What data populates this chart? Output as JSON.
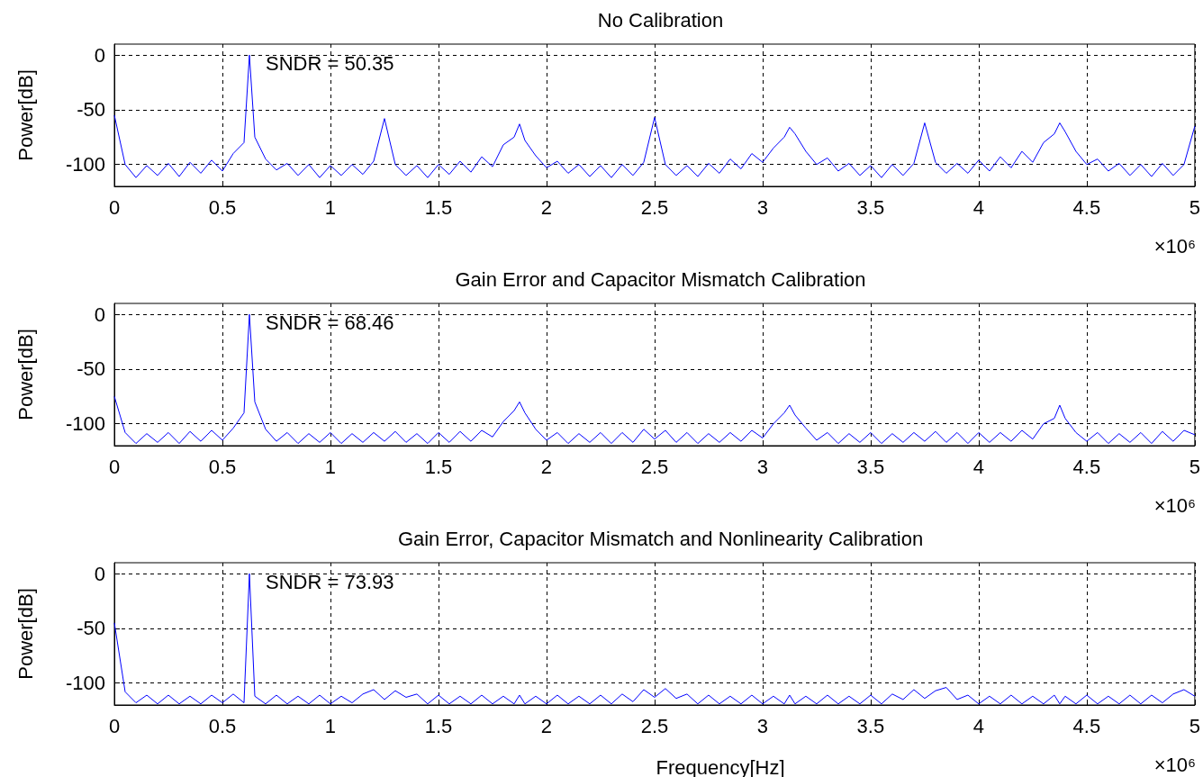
{
  "chart_data": [
    {
      "type": "line",
      "title": "No Calibration",
      "ylabel": "Power[dB]",
      "annotations": [
        "SNDR = 50.35",
        "×10⁶"
      ],
      "xlim": [
        0,
        5
      ],
      "xticks": [
        0,
        0.5,
        1,
        1.5,
        2,
        2.5,
        3,
        3.5,
        4,
        4.5,
        5
      ],
      "ylim": [
        -120,
        10
      ],
      "yticks": [
        -100,
        -50,
        0
      ],
      "grid": true,
      "x": [
        0,
        0.05,
        0.1,
        0.15,
        0.2,
        0.25,
        0.3,
        0.35,
        0.4,
        0.45,
        0.5,
        0.55,
        0.6,
        0.625,
        0.65,
        0.7,
        0.75,
        0.8,
        0.85,
        0.9,
        0.95,
        1,
        1.05,
        1.1,
        1.15,
        1.2,
        1.25,
        1.3,
        1.35,
        1.4,
        1.45,
        1.5,
        1.55,
        1.6,
        1.65,
        1.7,
        1.75,
        1.8,
        1.85,
        1.875,
        1.9,
        1.95,
        2,
        2.05,
        2.1,
        2.15,
        2.2,
        2.25,
        2.3,
        2.35,
        2.4,
        2.45,
        2.5,
        2.55,
        2.6,
        2.65,
        2.7,
        2.75,
        2.8,
        2.85,
        2.9,
        2.95,
        3,
        3.05,
        3.1,
        3.125,
        3.15,
        3.2,
        3.25,
        3.3,
        3.35,
        3.4,
        3.45,
        3.5,
        3.55,
        3.6,
        3.65,
        3.7,
        3.75,
        3.8,
        3.85,
        3.9,
        3.95,
        4,
        4.05,
        4.1,
        4.15,
        4.2,
        4.25,
        4.3,
        4.35,
        4.375,
        4.4,
        4.45,
        4.5,
        4.55,
        4.6,
        4.65,
        4.7,
        4.75,
        4.8,
        4.85,
        4.9,
        4.95,
        5
      ],
      "series": [
        {
          "color": "#0000ff",
          "values": [
            -55,
            -100,
            -112,
            -101,
            -110,
            -99,
            -111,
            -98,
            -108,
            -96,
            -106,
            -90,
            -80,
            0,
            -75,
            -95,
            -105,
            -99,
            -110,
            -100,
            -112,
            -101,
            -110,
            -100,
            -109,
            -97,
            -58,
            -100,
            -110,
            -101,
            -112,
            -100,
            -109,
            -97,
            -107,
            -93,
            -102,
            -82,
            -75,
            -63,
            -78,
            -92,
            -103,
            -97,
            -108,
            -100,
            -111,
            -101,
            -112,
            -100,
            -110,
            -98,
            -57,
            -100,
            -110,
            -101,
            -111,
            -99,
            -108,
            -95,
            -104,
            -90,
            -98,
            -85,
            -75,
            -66,
            -72,
            -88,
            -100,
            -94,
            -106,
            -99,
            -110,
            -101,
            -112,
            -100,
            -110,
            -99,
            -62,
            -98,
            -108,
            -99,
            -108,
            -96,
            -106,
            -93,
            -103,
            -88,
            -98,
            -80,
            -72,
            -62,
            -70,
            -88,
            -100,
            -95,
            -106,
            -99,
            -110,
            -100,
            -111,
            -99,
            -110,
            -100,
            -65
          ]
        }
      ]
    },
    {
      "type": "line",
      "title": "Gain Error and Capacitor Mismatch Calibration",
      "ylabel": "Power[dB]",
      "annotations": [
        "SNDR = 68.46",
        "×10⁶"
      ],
      "xlim": [
        0,
        5
      ],
      "xticks": [
        0,
        0.5,
        1,
        1.5,
        2,
        2.5,
        3,
        3.5,
        4,
        4.5,
        5
      ],
      "ylim": [
        -120,
        10
      ],
      "yticks": [
        -100,
        -50,
        0
      ],
      "grid": true,
      "x": [
        0,
        0.05,
        0.1,
        0.15,
        0.2,
        0.25,
        0.3,
        0.35,
        0.4,
        0.45,
        0.5,
        0.55,
        0.6,
        0.625,
        0.65,
        0.7,
        0.75,
        0.8,
        0.85,
        0.9,
        0.95,
        1,
        1.05,
        1.1,
        1.15,
        1.2,
        1.25,
        1.3,
        1.35,
        1.4,
        1.45,
        1.5,
        1.55,
        1.6,
        1.65,
        1.7,
        1.75,
        1.8,
        1.85,
        1.875,
        1.9,
        1.95,
        2,
        2.05,
        2.1,
        2.15,
        2.2,
        2.25,
        2.3,
        2.35,
        2.4,
        2.45,
        2.5,
        2.55,
        2.6,
        2.65,
        2.7,
        2.75,
        2.8,
        2.85,
        2.9,
        2.95,
        3,
        3.05,
        3.1,
        3.125,
        3.15,
        3.2,
        3.25,
        3.3,
        3.35,
        3.4,
        3.45,
        3.5,
        3.55,
        3.6,
        3.65,
        3.7,
        3.75,
        3.8,
        3.85,
        3.9,
        3.95,
        4,
        4.05,
        4.1,
        4.15,
        4.2,
        4.25,
        4.3,
        4.35,
        4.375,
        4.4,
        4.45,
        4.5,
        4.55,
        4.6,
        4.65,
        4.7,
        4.75,
        4.8,
        4.85,
        4.9,
        4.95,
        5
      ],
      "series": [
        {
          "color": "#0000ff",
          "values": [
            -75,
            -108,
            -118,
            -109,
            -117,
            -108,
            -118,
            -107,
            -116,
            -106,
            -115,
            -104,
            -90,
            0,
            -80,
            -105,
            -116,
            -108,
            -118,
            -109,
            -117,
            -108,
            -118,
            -109,
            -117,
            -108,
            -116,
            -107,
            -117,
            -109,
            -118,
            -108,
            -117,
            -107,
            -116,
            -106,
            -112,
            -98,
            -88,
            -80,
            -90,
            -105,
            -115,
            -108,
            -118,
            -109,
            -117,
            -108,
            -118,
            -108,
            -117,
            -105,
            -114,
            -106,
            -117,
            -108,
            -118,
            -109,
            -117,
            -108,
            -116,
            -106,
            -113,
            -100,
            -90,
            -83,
            -92,
            -104,
            -115,
            -108,
            -118,
            -109,
            -117,
            -108,
            -118,
            -109,
            -117,
            -108,
            -116,
            -107,
            -117,
            -108,
            -118,
            -108,
            -117,
            -108,
            -116,
            -106,
            -114,
            -100,
            -95,
            -83,
            -95,
            -108,
            -116,
            -108,
            -118,
            -109,
            -117,
            -108,
            -118,
            -107,
            -116,
            -106,
            -110
          ]
        }
      ]
    },
    {
      "type": "line",
      "title": "Gain Error, Capacitor Mismatch and Nonlinearity Calibration",
      "xlabel": "Frequency[Hz]",
      "ylabel": "Power[dB]",
      "annotations": [
        "SNDR = 73.93",
        "×10⁶"
      ],
      "xlim": [
        0,
        5
      ],
      "xticks": [
        0,
        0.5,
        1,
        1.5,
        2,
        2.5,
        3,
        3.5,
        4,
        4.5,
        5
      ],
      "ylim": [
        -120,
        10
      ],
      "yticks": [
        -100,
        -50,
        0
      ],
      "grid": true,
      "x": [
        0,
        0.05,
        0.1,
        0.15,
        0.2,
        0.25,
        0.3,
        0.35,
        0.4,
        0.45,
        0.5,
        0.55,
        0.6,
        0.625,
        0.65,
        0.7,
        0.75,
        0.8,
        0.85,
        0.9,
        0.95,
        1,
        1.05,
        1.1,
        1.15,
        1.2,
        1.25,
        1.3,
        1.35,
        1.4,
        1.45,
        1.5,
        1.55,
        1.6,
        1.65,
        1.7,
        1.75,
        1.8,
        1.85,
        1.875,
        1.9,
        1.95,
        2,
        2.05,
        2.1,
        2.15,
        2.2,
        2.25,
        2.3,
        2.35,
        2.4,
        2.45,
        2.5,
        2.55,
        2.6,
        2.65,
        2.7,
        2.75,
        2.8,
        2.85,
        2.9,
        2.95,
        3,
        3.05,
        3.1,
        3.125,
        3.15,
        3.2,
        3.25,
        3.3,
        3.35,
        3.4,
        3.45,
        3.5,
        3.55,
        3.6,
        3.65,
        3.7,
        3.75,
        3.8,
        3.85,
        3.9,
        3.95,
        4,
        4.05,
        4.1,
        4.15,
        4.2,
        4.25,
        4.3,
        4.35,
        4.375,
        4.4,
        4.45,
        4.5,
        4.55,
        4.6,
        4.65,
        4.7,
        4.75,
        4.8,
        4.85,
        4.9,
        4.95,
        5
      ],
      "series": [
        {
          "color": "#0000ff",
          "values": [
            -45,
            -108,
            -118,
            -111,
            -119,
            -111,
            -119,
            -112,
            -119,
            -111,
            -118,
            -110,
            -118,
            0,
            -112,
            -119,
            -111,
            -119,
            -112,
            -119,
            -111,
            -119,
            -112,
            -118,
            -110,
            -106,
            -115,
            -107,
            -113,
            -110,
            -119,
            -111,
            -119,
            -112,
            -119,
            -111,
            -119,
            -112,
            -119,
            -111,
            -119,
            -112,
            -119,
            -111,
            -119,
            -112,
            -119,
            -111,
            -119,
            -110,
            -117,
            -106,
            -113,
            -105,
            -114,
            -110,
            -119,
            -111,
            -119,
            -112,
            -119,
            -111,
            -119,
            -112,
            -119,
            -111,
            -119,
            -112,
            -119,
            -111,
            -119,
            -112,
            -119,
            -111,
            -119,
            -110,
            -115,
            -106,
            -114,
            -107,
            -104,
            -115,
            -111,
            -119,
            -112,
            -119,
            -111,
            -119,
            -112,
            -119,
            -111,
            -119,
            -112,
            -119,
            -111,
            -119,
            -112,
            -119,
            -111,
            -119,
            -111,
            -118,
            -110,
            -106,
            -112
          ]
        }
      ]
    }
  ]
}
